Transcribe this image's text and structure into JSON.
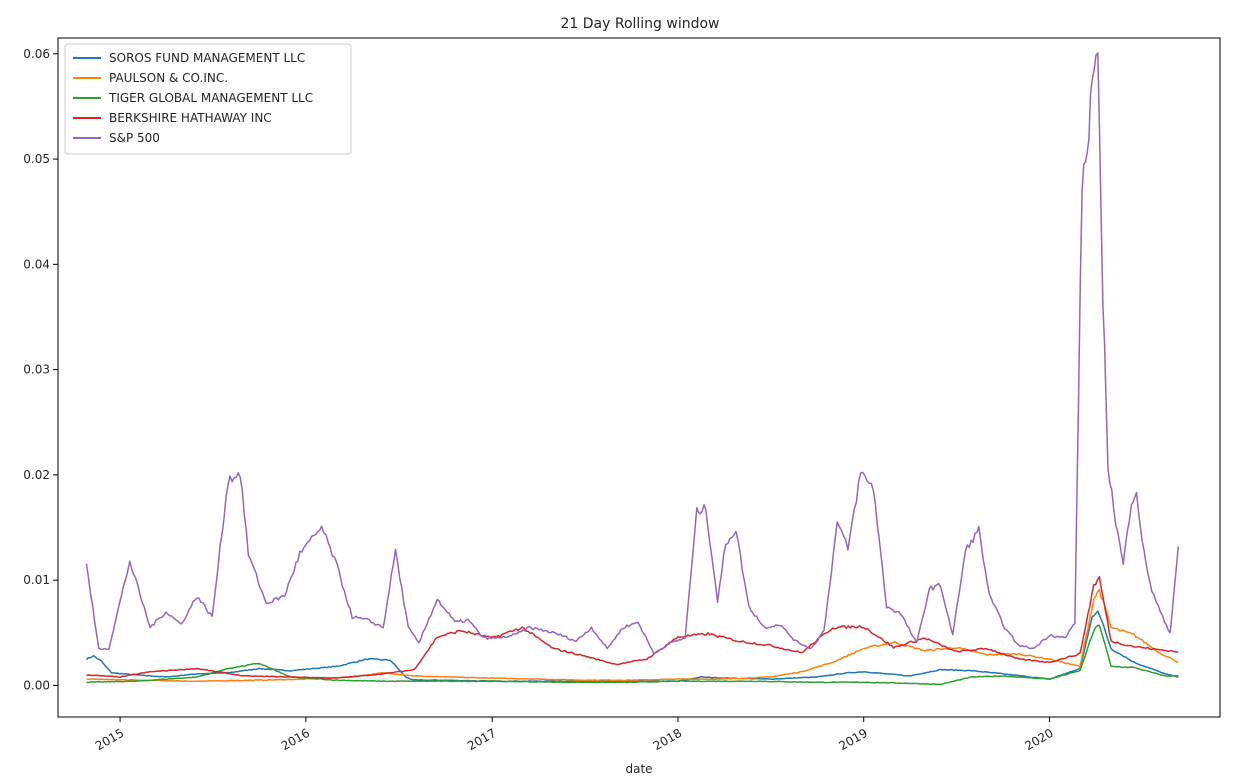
{
  "chart_data": {
    "type": "line",
    "title": "21 Day Rolling window",
    "xlabel": "date",
    "ylabel": "",
    "xlim": [
      "2014-09-01",
      "2020-12-01"
    ],
    "ylim": [
      -0.003,
      0.0615
    ],
    "grid": false,
    "legend_position": "top-left",
    "x_ticks": [
      {
        "value": "2015-01-01",
        "label": "2015"
      },
      {
        "value": "2016-01-01",
        "label": "2016"
      },
      {
        "value": "2017-01-01",
        "label": "2017"
      },
      {
        "value": "2018-01-01",
        "label": "2018"
      },
      {
        "value": "2019-01-01",
        "label": "2019"
      },
      {
        "value": "2020-01-01",
        "label": "2020"
      }
    ],
    "y_ticks": [
      {
        "value": 0.0,
        "label": "0.00"
      },
      {
        "value": 0.01,
        "label": "0.01"
      },
      {
        "value": 0.02,
        "label": "0.02"
      },
      {
        "value": 0.03,
        "label": "0.03"
      },
      {
        "value": 0.04,
        "label": "0.04"
      },
      {
        "value": 0.05,
        "label": "0.05"
      },
      {
        "value": 0.06,
        "label": "0.06"
      }
    ],
    "series": [
      {
        "name": "SOROS FUND MANAGEMENT LLC",
        "color": "#1f77b4",
        "x": [
          "2014-10-27",
          "2014-11-10",
          "2014-11-25",
          "2014-12-15",
          "2015-02-01",
          "2015-04-01",
          "2015-06-01",
          "2015-08-01",
          "2015-10-01",
          "2015-12-01",
          "2016-01-15",
          "2016-03-01",
          "2016-05-01",
          "2016-06-15",
          "2016-07-15",
          "2016-08-01",
          "2016-10-01",
          "2017-01-01",
          "2017-04-01",
          "2017-07-01",
          "2017-10-01",
          "2018-01-01",
          "2018-02-15",
          "2018-04-01",
          "2018-07-01",
          "2018-10-01",
          "2018-12-01",
          "2019-01-01",
          "2019-04-01",
          "2019-06-01",
          "2019-08-01",
          "2019-10-01",
          "2020-01-01",
          "2020-03-01",
          "2020-03-25",
          "2020-04-05",
          "2020-05-01",
          "2020-06-15",
          "2020-08-15",
          "2020-09-10"
        ],
        "values": [
          0.0025,
          0.0028,
          0.0023,
          0.0012,
          0.001,
          0.0008,
          0.0011,
          0.0012,
          0.0016,
          0.0014,
          0.0016,
          0.0018,
          0.0025,
          0.0024,
          0.0008,
          0.0005,
          0.0005,
          0.0004,
          0.0004,
          0.0004,
          0.0004,
          0.0004,
          0.0008,
          0.0007,
          0.0006,
          0.0008,
          0.0012,
          0.0013,
          0.0009,
          0.0015,
          0.0014,
          0.0011,
          0.0006,
          0.0016,
          0.0065,
          0.0072,
          0.0035,
          0.0022,
          0.0011,
          0.0008
        ]
      },
      {
        "name": "PAULSON & CO.INC.",
        "color": "#ff7f0e",
        "x": [
          "2014-10-27",
          "2015-02-01",
          "2015-06-01",
          "2015-10-01",
          "2016-01-01",
          "2016-04-01",
          "2016-06-01",
          "2016-08-01",
          "2016-10-01",
          "2017-01-01",
          "2017-04-01",
          "2017-07-01",
          "2017-10-01",
          "2018-01-01",
          "2018-04-01",
          "2018-07-01",
          "2018-09-01",
          "2018-11-01",
          "2019-01-01",
          "2019-03-01",
          "2019-05-01",
          "2019-07-01",
          "2019-09-01",
          "2019-11-01",
          "2020-01-01",
          "2020-03-01",
          "2020-03-28",
          "2020-04-08",
          "2020-05-01",
          "2020-06-15",
          "2020-08-01",
          "2020-09-10"
        ],
        "values": [
          0.0006,
          0.0005,
          0.0004,
          0.0005,
          0.0006,
          0.0008,
          0.0012,
          0.0009,
          0.0008,
          0.0007,
          0.0006,
          0.0005,
          0.0005,
          0.0006,
          0.0006,
          0.0008,
          0.0013,
          0.0022,
          0.0035,
          0.0041,
          0.0033,
          0.0036,
          0.0029,
          0.003,
          0.0025,
          0.0018,
          0.0082,
          0.0091,
          0.0055,
          0.0048,
          0.0032,
          0.0022
        ]
      },
      {
        "name": "TIGER GLOBAL MANAGEMENT LLC",
        "color": "#2ca02c",
        "x": [
          "2014-10-27",
          "2015-02-01",
          "2015-06-01",
          "2015-08-01",
          "2015-10-01",
          "2015-12-01",
          "2016-03-01",
          "2016-06-01",
          "2016-10-01",
          "2017-01-01",
          "2017-06-01",
          "2017-10-01",
          "2018-01-01",
          "2018-06-01",
          "2018-10-01",
          "2019-01-01",
          "2019-04-01",
          "2019-06-01",
          "2019-08-01",
          "2019-10-01",
          "2020-01-01",
          "2020-03-01",
          "2020-03-28",
          "2020-04-08",
          "2020-05-01",
          "2020-06-15",
          "2020-08-15",
          "2020-09-10"
        ],
        "values": [
          0.0003,
          0.0004,
          0.0008,
          0.0016,
          0.0021,
          0.0008,
          0.0005,
          0.0004,
          0.0004,
          0.0004,
          0.0003,
          0.0003,
          0.0004,
          0.0004,
          0.0003,
          0.0003,
          0.0002,
          0.0001,
          0.0008,
          0.0009,
          0.0006,
          0.0014,
          0.0052,
          0.0058,
          0.0018,
          0.0017,
          0.0009,
          0.0009
        ]
      },
      {
        "name": "BERKSHIRE HATHAWAY INC",
        "color": "#d62728",
        "x": [
          "2014-10-27",
          "2015-01-01",
          "2015-03-01",
          "2015-06-01",
          "2015-09-01",
          "2015-12-01",
          "2016-03-01",
          "2016-06-01",
          "2016-08-01",
          "2016-09-15",
          "2016-11-01",
          "2017-01-01",
          "2017-03-01",
          "2017-05-01",
          "2017-07-01",
          "2017-09-01",
          "2017-11-01",
          "2018-01-01",
          "2018-03-01",
          "2018-05-01",
          "2018-07-01",
          "2018-09-01",
          "2018-11-01",
          "2019-01-01",
          "2019-03-01",
          "2019-05-01",
          "2019-07-01",
          "2019-09-01",
          "2019-11-01",
          "2020-01-01",
          "2020-03-01",
          "2020-03-28",
          "2020-04-08",
          "2020-05-01",
          "2020-06-15",
          "2020-08-01",
          "2020-09-10"
        ],
        "values": [
          0.001,
          0.0008,
          0.0013,
          0.0016,
          0.0009,
          0.0008,
          0.0007,
          0.0011,
          0.0015,
          0.0046,
          0.0052,
          0.0045,
          0.0055,
          0.0035,
          0.0028,
          0.002,
          0.0025,
          0.0046,
          0.0049,
          0.0042,
          0.0038,
          0.0031,
          0.0055,
          0.0056,
          0.0036,
          0.0045,
          0.0032,
          0.0035,
          0.0025,
          0.0022,
          0.003,
          0.0095,
          0.0102,
          0.0042,
          0.0037,
          0.0034,
          0.0032
        ]
      },
      {
        "name": "S&P 500",
        "color": "#9467bd",
        "x": [
          "2014-10-27",
          "2014-11-20",
          "2014-12-10",
          "2015-01-20",
          "2015-03-01",
          "2015-04-01",
          "2015-05-01",
          "2015-06-01",
          "2015-07-01",
          "2015-08-01",
          "2015-08-25",
          "2015-09-10",
          "2015-10-15",
          "2015-11-20",
          "2015-12-20",
          "2016-02-01",
          "2016-03-01",
          "2016-04-01",
          "2016-05-01",
          "2016-06-01",
          "2016-06-25",
          "2016-07-20",
          "2016-08-10",
          "2016-09-15",
          "2016-10-20",
          "2016-11-15",
          "2016-12-15",
          "2017-01-15",
          "2017-02-15",
          "2017-03-15",
          "2017-04-15",
          "2017-05-15",
          "2017-06-15",
          "2017-07-15",
          "2017-08-15",
          "2017-09-15",
          "2017-10-15",
          "2017-11-15",
          "2017-12-15",
          "2018-01-15",
          "2018-02-07",
          "2018-02-25",
          "2018-03-20",
          "2018-04-05",
          "2018-04-25",
          "2018-05-20",
          "2018-06-20",
          "2018-07-20",
          "2018-08-20",
          "2018-09-20",
          "2018-10-15",
          "2018-11-10",
          "2018-12-01",
          "2018-12-26",
          "2019-01-20",
          "2019-02-15",
          "2019-03-15",
          "2019-04-15",
          "2019-05-10",
          "2019-06-01",
          "2019-06-25",
          "2019-07-20",
          "2019-08-15",
          "2019-09-05",
          "2019-10-05",
          "2019-11-01",
          "2019-12-01",
          "2020-01-01",
          "2020-02-01",
          "2020-02-20",
          "2020-03-05",
          "2020-03-15",
          "2020-03-25",
          "2020-04-05",
          "2020-04-15",
          "2020-04-25",
          "2020-05-10",
          "2020-05-25",
          "2020-06-10",
          "2020-06-20",
          "2020-07-01",
          "2020-07-20",
          "2020-08-10",
          "2020-08-25",
          "2020-09-10"
        ],
        "values": [
          0.0114,
          0.0035,
          0.0035,
          0.0118,
          0.0055,
          0.007,
          0.0058,
          0.0085,
          0.0065,
          0.0195,
          0.0202,
          0.0125,
          0.0078,
          0.0085,
          0.0125,
          0.015,
          0.0115,
          0.0065,
          0.0062,
          0.0055,
          0.0128,
          0.0055,
          0.004,
          0.0082,
          0.006,
          0.0062,
          0.0045,
          0.0045,
          0.0048,
          0.0055,
          0.0052,
          0.0048,
          0.0042,
          0.0055,
          0.0035,
          0.0055,
          0.006,
          0.003,
          0.004,
          0.0045,
          0.0165,
          0.0168,
          0.008,
          0.0135,
          0.0148,
          0.0075,
          0.0055,
          0.0058,
          0.0042,
          0.0035,
          0.0052,
          0.0155,
          0.013,
          0.0202,
          0.0188,
          0.0075,
          0.0068,
          0.004,
          0.0092,
          0.0095,
          0.0048,
          0.0128,
          0.0148,
          0.0085,
          0.0055,
          0.0038,
          0.0035,
          0.0048,
          0.0045,
          0.006,
          0.048,
          0.0505,
          0.0578,
          0.0588,
          0.037,
          0.021,
          0.0155,
          0.0115,
          0.0175,
          0.0185,
          0.0135,
          0.009,
          0.0065,
          0.005,
          0.0132
        ]
      }
    ]
  }
}
